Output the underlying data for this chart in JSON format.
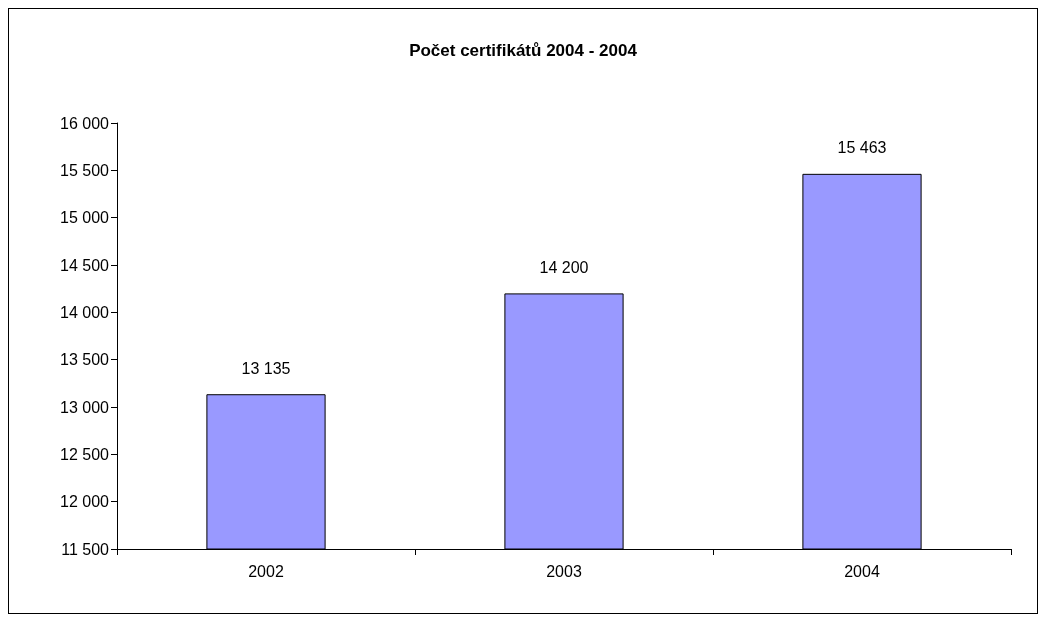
{
  "chart_data": {
    "type": "bar",
    "title": "Počet certifikátů 2004 - 2004",
    "categories": [
      "2002",
      "2003",
      "2004"
    ],
    "values": [
      13135,
      14200,
      15463
    ],
    "value_labels": [
      "13 135",
      "14 200",
      "15 463"
    ],
    "color": "#9999ff",
    "ylim": [
      11500,
      16000
    ],
    "yticks": [
      {
        "value": 11500,
        "label": "11 500"
      },
      {
        "value": 12000,
        "label": "12 000"
      },
      {
        "value": 12500,
        "label": "12 500"
      },
      {
        "value": 13000,
        "label": "13 000"
      },
      {
        "value": 13500,
        "label": "13 500"
      },
      {
        "value": 14000,
        "label": "14 000"
      },
      {
        "value": 14500,
        "label": "14 500"
      },
      {
        "value": 15000,
        "label": "15 000"
      },
      {
        "value": 15500,
        "label": "15 500"
      },
      {
        "value": 16000,
        "label": "16 000"
      }
    ],
    "grid": false
  }
}
